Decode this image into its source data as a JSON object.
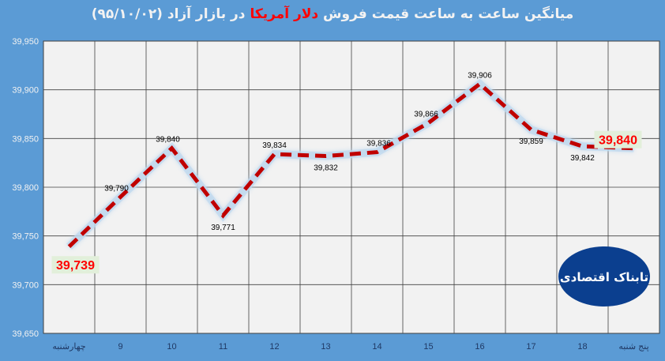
{
  "title": {
    "part1": "میانگین ساعت به ساعت قیمت فروش",
    "highlight": "دلار آمریکا",
    "part2": "در بازار آزاد (۹۵/۱۰/۰۲)"
  },
  "logo_text": "تابناک اقتصادی",
  "colors": {
    "background": "#5b9bd5",
    "plot": "#f2f2f2",
    "line": "#c00000",
    "highlight_label": "#ff0000",
    "highlight_box": "#e2efda"
  },
  "chart_data": {
    "type": "line",
    "categories": [
      "چهارشنبه",
      "9",
      "10",
      "11",
      "12",
      "13",
      "14",
      "15",
      "16",
      "17",
      "18",
      "پنج شنبه"
    ],
    "values": [
      39739,
      39790,
      39840,
      39771,
      39834,
      39832,
      39836,
      39866,
      39906,
      39859,
      39842,
      39840
    ],
    "data_labels": [
      "39,739",
      "39,790",
      "39,840",
      "39,771",
      "39,834",
      "39,832",
      "39,836",
      "39,866",
      "39,906",
      "39,859",
      "39,842",
      "39,840"
    ],
    "ylim": [
      39650,
      39950
    ],
    "yticks": [
      "39,650",
      "39,700",
      "39,750",
      "39,800",
      "39,850",
      "39,900",
      "39,950"
    ],
    "grid": true,
    "line_style": "dashed"
  }
}
